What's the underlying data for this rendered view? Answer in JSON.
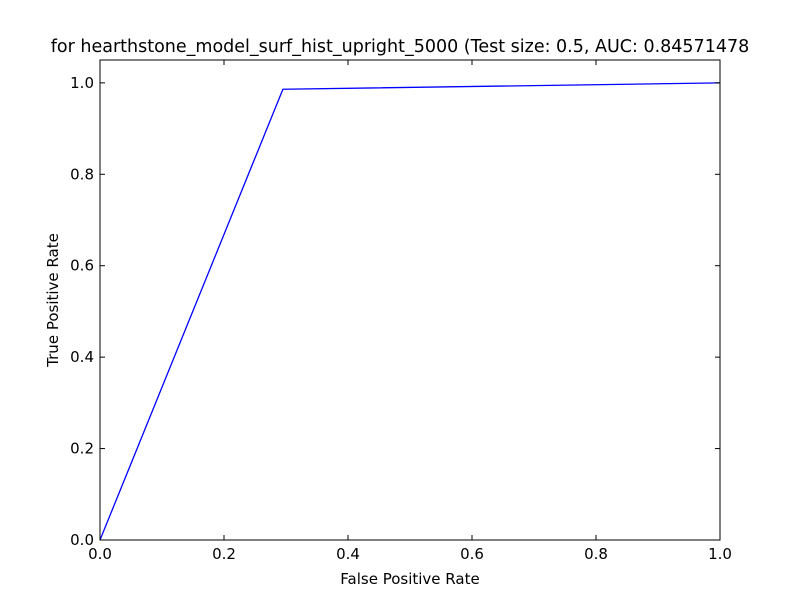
{
  "chart_data": {
    "type": "line",
    "title": "for hearthstone_model_surf_hist_upright_5000 (Test size: 0.5, AUC: 0.84571478",
    "xlabel": "False Positive Rate",
    "ylabel": "True Positive Rate",
    "xlim": [
      0.0,
      1.0
    ],
    "ylim": [
      0.0,
      1.05
    ],
    "x_ticks": [
      0.0,
      0.2,
      0.4,
      0.6,
      0.8,
      1.0
    ],
    "y_ticks": [
      0.0,
      0.2,
      0.4,
      0.6,
      0.8,
      1.0
    ],
    "x_tick_labels": [
      "0.0",
      "0.2",
      "0.4",
      "0.6",
      "0.8",
      "1.0"
    ],
    "y_tick_labels": [
      "0.0",
      "0.2",
      "0.4",
      "0.6",
      "0.8",
      "1.0"
    ],
    "grid": false,
    "series": [
      {
        "color": "#0000ff",
        "x": [
          0.0,
          0.295,
          1.0
        ],
        "y": [
          0.0,
          0.986,
          1.0
        ]
      }
    ]
  }
}
